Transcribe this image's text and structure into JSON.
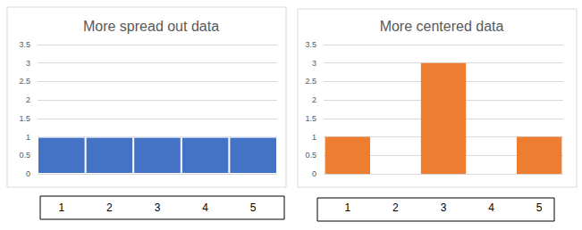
{
  "chart_data": [
    {
      "type": "bar",
      "title": "More spread out data",
      "categories": [
        "1",
        "2",
        "3",
        "4",
        "5"
      ],
      "values": [
        1,
        1,
        1,
        1,
        1
      ],
      "color": "#4472c4",
      "ylim": [
        0,
        3.5
      ],
      "yticks": [
        0,
        0.5,
        1,
        1.5,
        2,
        2.5,
        3,
        3.5
      ],
      "grid": true
    },
    {
      "type": "bar",
      "title": "More centered data",
      "categories": [
        "1",
        "2",
        "3",
        "4",
        "5"
      ],
      "values": [
        1,
        0,
        3,
        0,
        1
      ],
      "color": "#ed7d31",
      "ylim": [
        0,
        3.5
      ],
      "yticks": [
        0,
        0.5,
        1,
        1.5,
        2,
        2.5,
        3,
        3.5
      ],
      "grid": true
    }
  ]
}
